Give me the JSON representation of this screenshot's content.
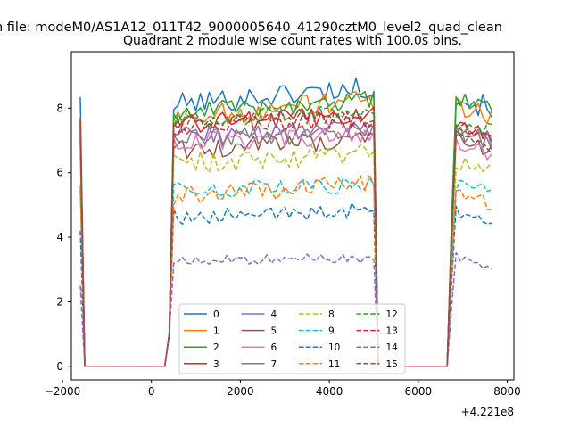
{
  "figure": {
    "suptitle": "n file: modeM0/AS1A12_011T42_9000005640_41290cztM0_level2_quad_clean",
    "offset_text": "+4.221e8"
  },
  "chart_data": {
    "type": "line",
    "title": "Quadrant 2 module wise count rates with 100.0s bins.",
    "xlabel": "",
    "ylabel": "",
    "xlim": [
      -1800,
      8150
    ],
    "ylim": [
      -0.42,
      9.75
    ],
    "xticks": [
      -2000,
      0,
      2000,
      4000,
      6000,
      8000
    ],
    "xtick_labels": [
      "−2000",
      "0",
      "2000",
      "4000",
      "6000",
      "8000"
    ],
    "yticks": [
      0,
      2,
      4,
      6,
      8
    ],
    "ytick_labels": [
      "0",
      "2",
      "4",
      "6",
      "8"
    ],
    "grid": false,
    "legend": {
      "placement": "lower center",
      "columns": 4
    },
    "segments": {
      "seg1": {
        "x_start": -1600,
        "x_end": 300
      },
      "seg2": {
        "x_start": 300,
        "x_end": 5100
      },
      "seg3": {
        "x_start": 5100,
        "x_end": 6650
      },
      "seg4": {
        "x_start": 6650,
        "x_end": 7650
      }
    },
    "series": [
      {
        "name": "0",
        "color": "#1f77b4",
        "dash": "solid",
        "start": 8.35,
        "rate1": 8.3,
        "rate2": 8.2,
        "noise": 0.35,
        "trend": 0.6
      },
      {
        "name": "1",
        "color": "#ff7f0e",
        "dash": "solid",
        "start": 7.7,
        "rate1": 7.9,
        "rate2": 7.9,
        "noise": 0.35,
        "trend": 0.6
      },
      {
        "name": "2",
        "color": "#2ca02c",
        "dash": "solid",
        "start": 7.7,
        "rate1": 8.0,
        "rate2": 8.1,
        "noise": 0.3,
        "trend": 0.4
      },
      {
        "name": "3",
        "color": "#d62728",
        "dash": "solid",
        "start": 7.6,
        "rate1": 7.6,
        "rate2": 7.3,
        "noise": 0.3,
        "trend": 0.3
      },
      {
        "name": "4",
        "color": "#9467bd",
        "dash": "solid",
        "start": 7.3,
        "rate1": 7.2,
        "rate2": 7.2,
        "noise": 0.3,
        "trend": 0.2
      },
      {
        "name": "5",
        "color": "#8c564b",
        "dash": "solid",
        "start": 7.2,
        "rate1": 6.8,
        "rate2": 6.9,
        "noise": 0.3,
        "trend": 0.4
      },
      {
        "name": "6",
        "color": "#e377c2",
        "dash": "solid",
        "start": 7.0,
        "rate1": 7.0,
        "rate2": 6.8,
        "noise": 0.3,
        "trend": 0.2
      },
      {
        "name": "7",
        "color": "#7f7f7f",
        "dash": "solid",
        "start": 7.0,
        "rate1": 7.1,
        "rate2": 7.2,
        "noise": 0.3,
        "trend": 0.3
      },
      {
        "name": "8",
        "color": "#bcbd22",
        "dash": "dashed",
        "start": 6.5,
        "rate1": 6.4,
        "rate2": 6.2,
        "noise": 0.35,
        "trend": 0.3
      },
      {
        "name": "9",
        "color": "#17becf",
        "dash": "dashed",
        "start": 5.5,
        "rate1": 5.5,
        "rate2": 5.6,
        "noise": 0.25,
        "trend": 0.2
      },
      {
        "name": "10",
        "color": "#1f77b4",
        "dash": "dashed",
        "start": 4.2,
        "rate1": 4.7,
        "rate2": 4.7,
        "noise": 0.25,
        "trend": 0.2
      },
      {
        "name": "11",
        "color": "#ff7f0e",
        "dash": "dashed",
        "start": 5.6,
        "rate1": 5.4,
        "rate2": 5.3,
        "noise": 0.3,
        "trend": 0.4
      },
      {
        "name": "12",
        "color": "#2ca02c",
        "dash": "dashed",
        "start": 7.5,
        "rate1": 7.7,
        "rate2": 7.5,
        "noise": 0.3,
        "trend": 0.3
      },
      {
        "name": "13",
        "color": "#d62728",
        "dash": "dashed",
        "start": 7.4,
        "rate1": 7.5,
        "rate2": 7.3,
        "noise": 0.3,
        "trend": 0.3
      },
      {
        "name": "14",
        "color": "#9467bd",
        "dash": "dashed",
        "start": 2.5,
        "rate1": 3.3,
        "rate2": 3.3,
        "noise": 0.15,
        "trend": 0.1
      },
      {
        "name": "15",
        "color": "#8c564b",
        "dash": "dashed",
        "start": 7.5,
        "rate1": 7.6,
        "rate2": 7.1,
        "noise": 0.3,
        "trend": 0.3
      }
    ]
  }
}
